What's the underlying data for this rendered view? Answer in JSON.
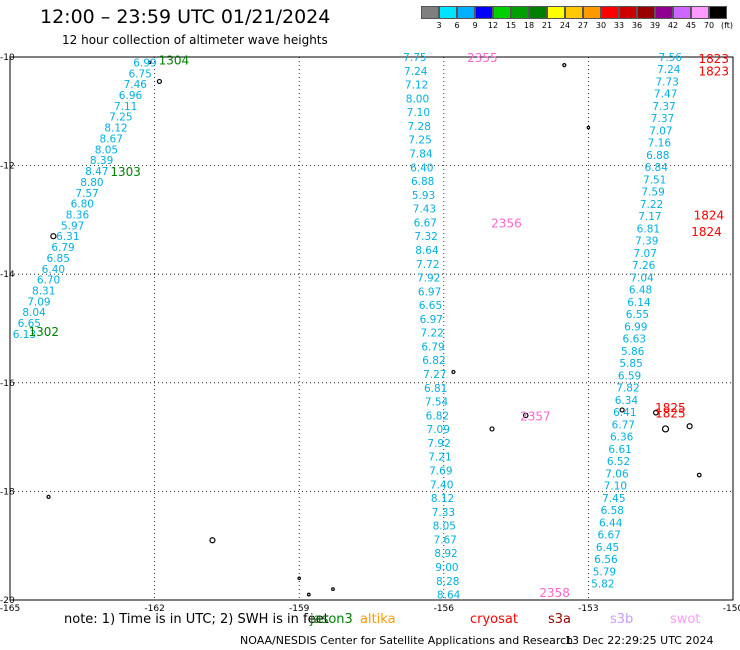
{
  "title": "12:00 – 23:59 UTC 01/21/2024",
  "subtitle": "12 hour collection of altimeter wave heights",
  "legend": {
    "colors": [
      "#7f7f7f",
      "#00e5ff",
      "#00b0ff",
      "#0000ff",
      "#00d000",
      "#00a000",
      "#008000",
      "#ffff00",
      "#ffc800",
      "#ff9900",
      "#ff0000",
      "#cc0000",
      "#990000",
      "#8f008f",
      "#cc66ff",
      "#ff99ff",
      "#000000"
    ],
    "labels": [
      "3",
      "6",
      "9",
      "12",
      "15",
      "18",
      "21",
      "24",
      "27",
      "30",
      "33",
      "36",
      "39",
      "42",
      "45",
      "70",
      "(ft)"
    ]
  },
  "note": "note: 1) Time is in UTC; 2) SWH is in feet",
  "satellites": [
    {
      "name": "jason3",
      "color": "#008000"
    },
    {
      "name": "altika",
      "color": "#ff9900"
    },
    {
      "name": "cryosat",
      "color": "#ff0000"
    },
    {
      "name": "s3a",
      "color": "#990000"
    },
    {
      "name": "s3b",
      "color": "#cc99ff"
    },
    {
      "name": "swot",
      "color": "#ff99ff"
    }
  ],
  "footer": {
    "credit": "NOAA/NESDIS Center for Satellite Applications and Research",
    "timestamp": "13 Dec 22:29:25 UTC 2024"
  },
  "chart_data": {
    "type": "scatter",
    "title": "12:00 – 23:59 UTC 01/21/2024",
    "subtitle": "12 hour collection of altimeter wave heights",
    "xlim": [
      -165,
      -150
    ],
    "ylim": [
      -20,
      -10
    ],
    "x_ticks": [
      "-165",
      "-162",
      "-159",
      "-156",
      "-153",
      "-150"
    ],
    "y_ticks": [
      "-10",
      "-12",
      "-14",
      "-16",
      "-18",
      "-20"
    ],
    "grid": true,
    "point_color": "#00b0e0",
    "tracks": [
      {
        "lon_start": -162.2,
        "lat_start": -10.1,
        "lon_end": -164.7,
        "lat_end": -15.1,
        "label_color": "#00b0e0",
        "values": [
          "6.99",
          "6.75",
          "7.46",
          "6.96",
          "7.11",
          "7.25",
          "8.12",
          "8.67",
          "8.05",
          "8.39",
          "8.47",
          "8.80",
          "7.57",
          "6.80",
          "8.36",
          "5.97",
          "6.31",
          "6.79",
          "6.85",
          "6.40",
          "6.70",
          "8.31",
          "7.09",
          "8.04",
          "6.65",
          "6.13"
        ]
      },
      {
        "lon_start": -156.6,
        "lat_start": -10.0,
        "lon_end": -155.9,
        "lat_end": -19.9,
        "label_color": "#00b0e0",
        "values": [
          "7.75",
          "7.24",
          "7.12",
          "8.00",
          "7.10",
          "7.28",
          "7.25",
          "7.84",
          "6.40",
          "6.88",
          "5.93",
          "7.43",
          "6.67",
          "7.32",
          "8.64",
          "7.72",
          "7.92",
          "6.97",
          "6.65",
          "6.97",
          "7.22",
          "6.79",
          "6.82",
          "7.27",
          "6.81",
          "7.54",
          "6.82",
          "7.09",
          "7.92",
          "7.21",
          "7.69",
          "7.40",
          "8.12",
          "7.33",
          "8.05",
          "7.67",
          "8.92",
          "9.00",
          "8.28",
          "8.64"
        ]
      },
      {
        "lon_start": -151.3,
        "lat_start": -10.0,
        "lon_end": -152.7,
        "lat_end": -19.7,
        "label_color": "#00b0e0",
        "values": [
          "7.56",
          "7.24",
          "7.73",
          "7.47",
          "7.37",
          "7.37",
          "7.07",
          "7.16",
          "6.88",
          "6.84",
          "7.51",
          "7.59",
          "7.22",
          "7.17",
          "6.81",
          "7.39",
          "7.07",
          "7.26",
          "7.04",
          "6.48",
          "6.14",
          "6.55",
          "6.99",
          "6.63",
          "5.86",
          "5.85",
          "6.59",
          "7.82",
          "6.34",
          "6.41",
          "6.77",
          "6.36",
          "6.61",
          "6.52",
          "7.06",
          "7.10",
          "7.45",
          "6.58",
          "6.44",
          "6.67",
          "6.45",
          "6.56",
          "5.79",
          "5.82"
        ]
      }
    ],
    "pass_labels": [
      {
        "text": "1304",
        "lon": -161.6,
        "lat": -10.05,
        "color": "#008000"
      },
      {
        "text": "1303",
        "lon": -162.6,
        "lat": -12.1,
        "color": "#008000"
      },
      {
        "text": "1302",
        "lon": -164.3,
        "lat": -15.05,
        "color": "#008000"
      },
      {
        "text": "2355",
        "lon": -155.2,
        "lat": -10.0,
        "color": "#ff66cc"
      },
      {
        "text": "2356",
        "lon": -154.7,
        "lat": -13.05,
        "color": "#ff66cc"
      },
      {
        "text": "2357",
        "lon": -154.1,
        "lat": -16.6,
        "color": "#ff66cc"
      },
      {
        "text": "2358",
        "lon": -153.7,
        "lat": -19.85,
        "color": "#ff66cc"
      },
      {
        "text": "1823",
        "lon": -150.4,
        "lat": -10.02,
        "color": "#ff0000"
      },
      {
        "text": "1823",
        "lon": -150.4,
        "lat": -10.25,
        "color": "#ff0000"
      },
      {
        "text": "1824",
        "lon": -150.5,
        "lat": -12.9,
        "color": "#ff0000"
      },
      {
        "text": "1824",
        "lon": -150.55,
        "lat": -13.2,
        "color": "#ff0000"
      },
      {
        "text": "1825",
        "lon": -151.3,
        "lat": -16.45,
        "color": "#ff0000"
      },
      {
        "text": "1825",
        "lon": -151.3,
        "lat": -16.55,
        "color": "#ff0000"
      }
    ]
  }
}
